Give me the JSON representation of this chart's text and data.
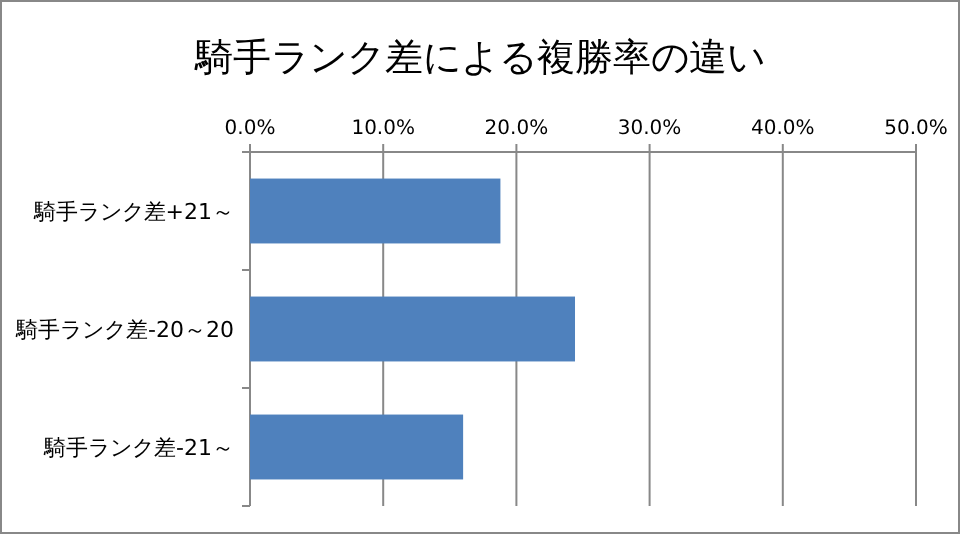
{
  "chart_data": {
    "type": "bar",
    "orientation": "horizontal",
    "title": "騎手ランク差による複勝率の違い",
    "categories": [
      "騎手ランク差+21～",
      "騎手ランク差-20～20",
      "騎手ランク差-21～"
    ],
    "values": [
      18.8,
      24.4,
      16.0
    ],
    "color": "#4f81bd",
    "xlim": [
      0,
      50
    ],
    "xticks": [
      {
        "value": 0,
        "label": "0.0%"
      },
      {
        "value": 10,
        "label": "10.0%"
      },
      {
        "value": 20,
        "label": "20.0%"
      },
      {
        "value": 30,
        "label": "30.0%"
      },
      {
        "value": 40,
        "label": "40.0%"
      },
      {
        "value": 50,
        "label": "50.0%"
      }
    ],
    "grid": "x"
  }
}
